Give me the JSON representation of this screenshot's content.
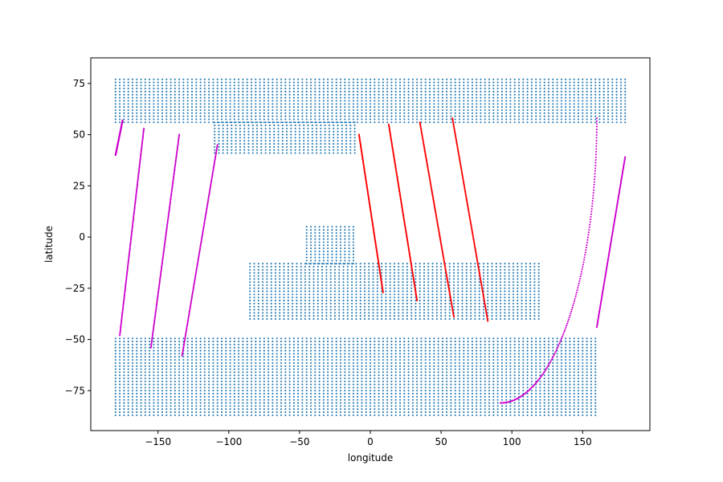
{
  "chart_data": {
    "type": "scatter",
    "title": "",
    "xlabel": "longitude",
    "ylabel": "latitude",
    "xlim": [
      -197.5,
      197.5
    ],
    "ylim": [
      -94.5,
      87.5
    ],
    "xticks": [
      -150,
      -100,
      -50,
      0,
      50,
      100,
      150
    ],
    "yticks": [
      -75,
      -50,
      -25,
      0,
      25,
      50,
      75
    ],
    "grid": false,
    "legend": "none",
    "series": [
      {
        "color": "#1f77b4",
        "marker_size": 1.5,
        "grid_step": [
          3,
          1.5
        ],
        "regions": [
          {
            "y": [
              56,
              77
            ],
            "x": [
              -180,
              180
            ]
          },
          {
            "y": [
              41,
              56
            ],
            "x": [
              -110,
              -10
            ]
          },
          {
            "y": [
              -87,
              -49
            ],
            "x": [
              -180,
              160
            ]
          },
          {
            "y": [
              -40,
              -13
            ],
            "x": [
              -85,
              120
            ]
          },
          {
            "y": [
              -13,
              5
            ],
            "x": [
              -45,
              -10
            ]
          }
        ]
      },
      {
        "color": "#cc00cc",
        "marker_size": 1.5,
        "tracks": [
          {
            "x": [
              -180,
              -175
            ],
            "y": [
              40,
              57
            ]
          },
          {
            "x": [
              -177,
              -160
            ],
            "y": [
              -48,
              53
            ]
          },
          {
            "x": [
              -155,
              -135
            ],
            "y": [
              -54,
              50
            ]
          },
          {
            "x": [
              -133,
              -108
            ],
            "y": [
              -58,
              45
            ]
          },
          {
            "x": [
              92,
              160
            ],
            "y": [
              -81,
              58
            ],
            "curve": "quarter"
          },
          {
            "x": [
              160,
              180
            ],
            "y": [
              -44,
              39
            ]
          }
        ]
      },
      {
        "color": "#ff0000",
        "marker_size": 1.5,
        "tracks": [
          {
            "x": [
              -8,
              9
            ],
            "y": [
              50,
              -27
            ]
          },
          {
            "x": [
              13,
              33
            ],
            "y": [
              55,
              -31
            ]
          },
          {
            "x": [
              35,
              59
            ],
            "y": [
              56,
              -39
            ]
          },
          {
            "x": [
              58,
              83
            ],
            "y": [
              58,
              -41
            ]
          }
        ]
      }
    ]
  }
}
